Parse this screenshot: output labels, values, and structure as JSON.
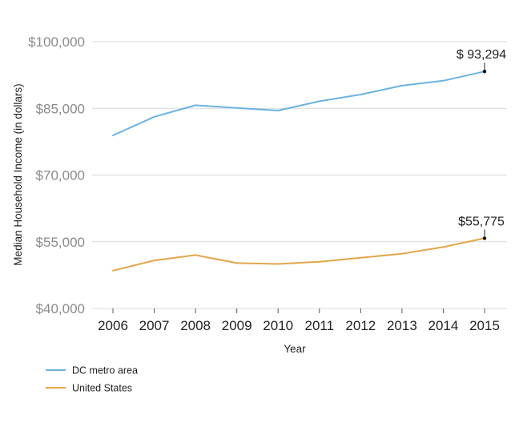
{
  "chart_data": {
    "type": "line",
    "title": "",
    "xlabel": "Year",
    "ylabel": "Median Household Income (in dollars)",
    "x": [
      2006,
      2007,
      2008,
      2009,
      2010,
      2011,
      2012,
      2013,
      2014,
      2015
    ],
    "x_tick_labels": [
      "2006",
      "2007",
      "2008",
      "2009",
      "2010",
      "2011",
      "2012",
      "2013",
      "2014",
      "2015"
    ],
    "ylim": [
      40000,
      100000
    ],
    "y_ticks": [
      40000,
      55000,
      70000,
      85000,
      100000
    ],
    "y_tick_labels": [
      "$40,000",
      "$55,000",
      "$70,000",
      "$85,000",
      "$100,000"
    ],
    "grid": "horizontal",
    "legend_position": "bottom-left",
    "series": [
      {
        "name": "DC metro area",
        "color": "#6bb3e0",
        "values": [
          78900,
          83100,
          85700,
          85100,
          84500,
          86600,
          88100,
          90100,
          91200,
          93294
        ]
      },
      {
        "name": "United States",
        "color": "#e3a54b",
        "values": [
          48500,
          50800,
          52000,
          50200,
          50000,
          50500,
          51400,
          52300,
          53800,
          55775
        ]
      }
    ],
    "annotations": [
      {
        "series": 0,
        "x": 2015,
        "text": "$ 93,294"
      },
      {
        "series": 1,
        "x": 2015,
        "text": "$55,775"
      }
    ]
  }
}
